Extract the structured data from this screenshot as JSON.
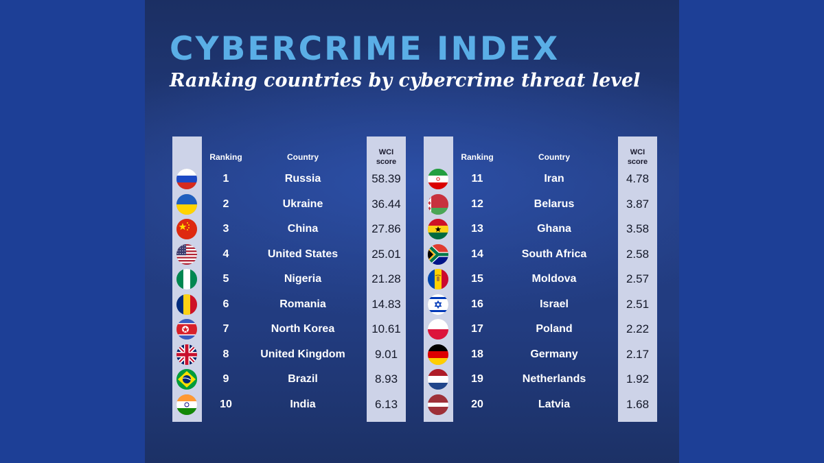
{
  "header": {
    "title": "CYBERCRIME INDEX",
    "subtitle": "Ranking countries by cybercrime threat level"
  },
  "columns": {
    "ranking": "Ranking",
    "country": "Country",
    "score_line1": "WCI",
    "score_line2": "score"
  },
  "rows": [
    {
      "rank": "1",
      "country": "Russia",
      "score": "58.39",
      "flag": "russia-flag-icon"
    },
    {
      "rank": "2",
      "country": "Ukraine",
      "score": "36.44",
      "flag": "ukraine-flag-icon"
    },
    {
      "rank": "3",
      "country": "China",
      "score": "27.86",
      "flag": "china-flag-icon"
    },
    {
      "rank": "4",
      "country": "United States",
      "score": "25.01",
      "flag": "united-states-flag-icon"
    },
    {
      "rank": "5",
      "country": "Nigeria",
      "score": "21.28",
      "flag": "nigeria-flag-icon"
    },
    {
      "rank": "6",
      "country": "Romania",
      "score": "14.83",
      "flag": "romania-flag-icon"
    },
    {
      "rank": "7",
      "country": "North Korea",
      "score": "10.61",
      "flag": "north-korea-flag-icon"
    },
    {
      "rank": "8",
      "country": "United Kingdom",
      "score": "9.01",
      "flag": "united-kingdom-flag-icon"
    },
    {
      "rank": "9",
      "country": "Brazil",
      "score": "8.93",
      "flag": "brazil-flag-icon"
    },
    {
      "rank": "10",
      "country": "India",
      "score": "6.13",
      "flag": "india-flag-icon"
    },
    {
      "rank": "11",
      "country": "Iran",
      "score": "4.78",
      "flag": "iran-flag-icon"
    },
    {
      "rank": "12",
      "country": "Belarus",
      "score": "3.87",
      "flag": "belarus-flag-icon"
    },
    {
      "rank": "13",
      "country": "Ghana",
      "score": "3.58",
      "flag": "ghana-flag-icon"
    },
    {
      "rank": "14",
      "country": "South Africa",
      "score": "2.58",
      "flag": "south-africa-flag-icon"
    },
    {
      "rank": "15",
      "country": "Moldova",
      "score": "2.57",
      "flag": "moldova-flag-icon"
    },
    {
      "rank": "16",
      "country": "Israel",
      "score": "2.51",
      "flag": "israel-flag-icon"
    },
    {
      "rank": "17",
      "country": "Poland",
      "score": "2.22",
      "flag": "poland-flag-icon"
    },
    {
      "rank": "18",
      "country": "Germany",
      "score": "2.17",
      "flag": "germany-flag-icon"
    },
    {
      "rank": "19",
      "country": "Netherlands",
      "score": "1.92",
      "flag": "netherlands-flag-icon"
    },
    {
      "rank": "20",
      "country": "Latvia",
      "score": "1.68",
      "flag": "latvia-flag-icon"
    }
  ],
  "colors": {
    "background": "#1d3f96",
    "title": "#5aaee6",
    "strip": "#cdd3e8"
  }
}
